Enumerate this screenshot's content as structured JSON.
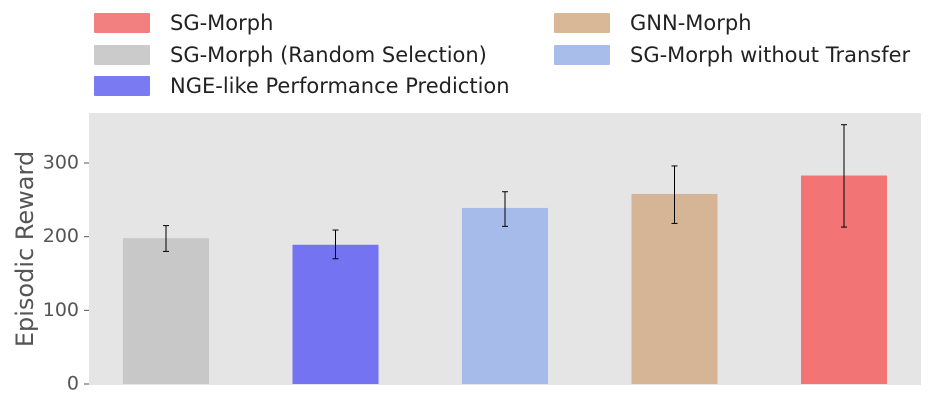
{
  "chart_data": {
    "type": "bar",
    "ylabel": "Episodic Reward",
    "xlabel": "",
    "ylim": [
      0,
      365
    ],
    "yticks": [
      0,
      100,
      200,
      300
    ],
    "grid": false,
    "legend_position": "top",
    "bars": [
      {
        "name": "SG-Morph (Random Selection)",
        "value": 198,
        "error_low": 180,
        "error_high": 215,
        "color": "#c8c8c8"
      },
      {
        "name": "NGE-like Performance Prediction",
        "value": 189,
        "error_low": 170,
        "error_high": 209,
        "color": "#7474f2"
      },
      {
        "name": "SG-Morph without Transfer",
        "value": 239,
        "error_low": 214,
        "error_high": 261,
        "color": "#a7bbea"
      },
      {
        "name": "GNN-Morph",
        "value": 258,
        "error_low": 218,
        "error_high": 296,
        "color": "#d5b596"
      },
      {
        "name": "SG-Morph",
        "value": 283,
        "error_low": 213,
        "error_high": 352,
        "color": "#f27474"
      }
    ]
  },
  "legend": [
    {
      "label": "SG-Morph",
      "color": "#f28080"
    },
    {
      "label": "GNN-Morph",
      "color": "#d8b896"
    },
    {
      "label": "SG-Morph (Random Selection)",
      "color": "#cbcbcb"
    },
    {
      "label": "SG-Morph without Transfer",
      "color": "#a9bdea"
    },
    {
      "label": "NGE-like Performance Prediction",
      "color": "#7a7af2"
    }
  ]
}
